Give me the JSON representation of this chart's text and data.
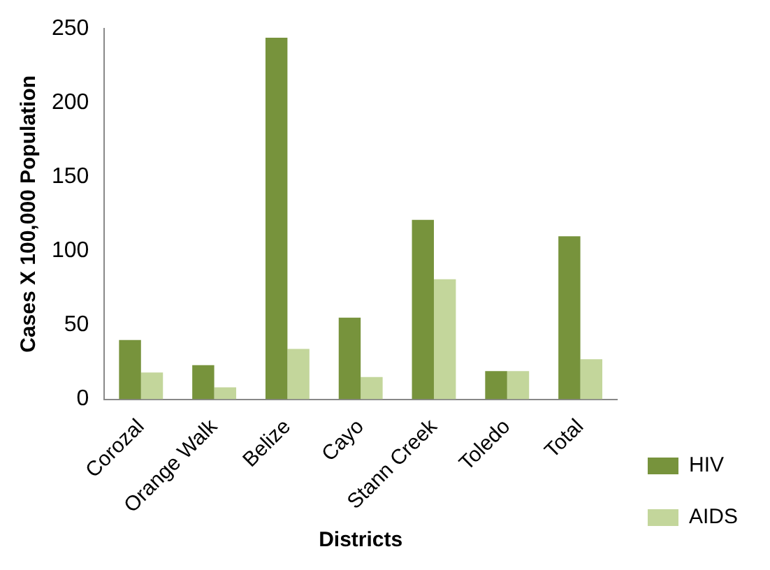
{
  "chart_data": {
    "type": "bar",
    "xlabel": "Districts",
    "ylabel": "Cases X 100,000 Population",
    "categories": [
      "Corozal",
      "Orange Walk",
      "Belize",
      "Cayo",
      "Stann Creek",
      "Toledo",
      "Total"
    ],
    "series": [
      {
        "name": "HIV",
        "color": "#77933c",
        "values": [
          40,
          23,
          244,
          55,
          121,
          19,
          110
        ]
      },
      {
        "name": "AIDS",
        "color": "#c3d69b",
        "values": [
          18,
          8,
          34,
          15,
          81,
          19,
          27
        ]
      }
    ],
    "ylim": [
      0,
      250
    ],
    "yticks": [
      0,
      50,
      100,
      150,
      200,
      250
    ],
    "grid": false,
    "legend": "bottom right"
  }
}
